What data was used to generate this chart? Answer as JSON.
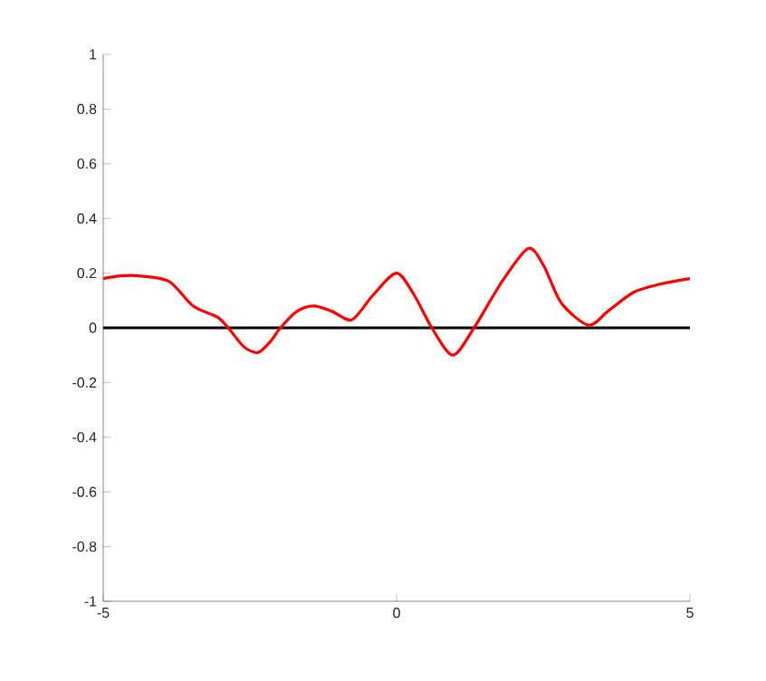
{
  "chart_data": {
    "type": "line",
    "xlim": [
      -5,
      5
    ],
    "ylim": [
      -1,
      1
    ],
    "xticks": [
      -5,
      0,
      5
    ],
    "yticks": [
      -1,
      -0.8,
      -0.6,
      -0.4,
      -0.2,
      0,
      0.2,
      0.4,
      0.6,
      0.8,
      1
    ],
    "grid": false,
    "marker": "none",
    "line_style": "solid",
    "ref_lines": [
      {
        "axis": "y",
        "value": 0,
        "color": "#000000"
      }
    ],
    "series": [
      {
        "color": "#ff0000",
        "x": [
          -5,
          -4.7,
          -4.39,
          -3.88,
          -3.47,
          -3.06,
          -2.87,
          -2.6,
          -2.36,
          -2.15,
          -1.98,
          -1.7,
          -1.41,
          -1.1,
          -0.76,
          -0.4,
          0,
          0.3,
          0.6,
          0.96,
          1.32,
          1.8,
          2.24,
          2.5,
          2.81,
          3.27,
          3.6,
          4.04,
          4.5,
          5
        ],
        "values": [
          0.18,
          0.19,
          0.19,
          0.17,
          0.08,
          0.04,
          0,
          -0.07,
          -0.09,
          -0.05,
          0,
          0.06,
          0.08,
          0.06,
          0.03,
          0.12,
          0.2,
          0.12,
          0,
          -0.1,
          0,
          0.17,
          0.29,
          0.23,
          0.09,
          0.01,
          0.06,
          0.13,
          0.16,
          0.18
        ]
      }
    ]
  }
}
